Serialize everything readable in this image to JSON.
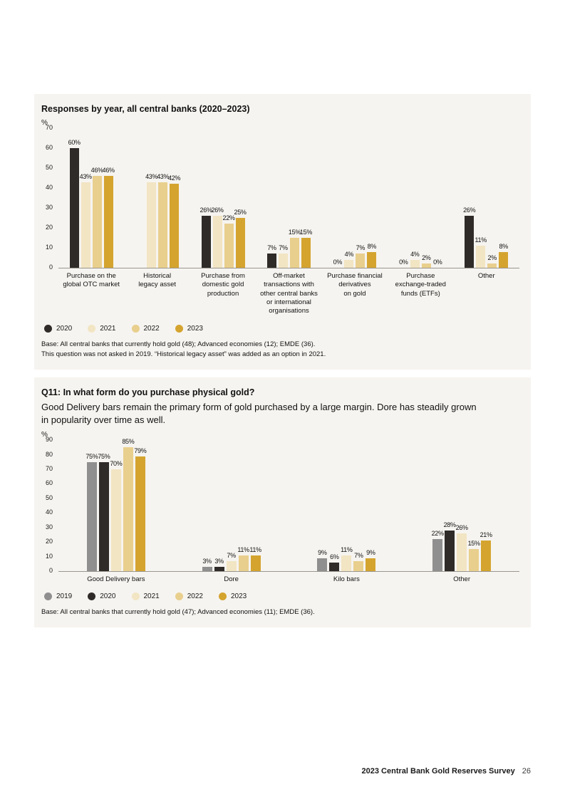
{
  "chart_data": [
    {
      "type": "bar",
      "title": "Responses by year, all central banks (2020–2023)",
      "ylabel": "%",
      "ylim": [
        0,
        70
      ],
      "yticks": [
        0,
        10,
        20,
        30,
        40,
        50,
        60,
        70
      ],
      "grid": false,
      "legend_position": "bottom",
      "categories": [
        "Purchase on the\nglobal OTC market",
        "Historical\nlegacy asset",
        "Purchase from\ndomestic gold\nproduction",
        "Off-market\ntransactions with\nother central banks\nor international\norganisations",
        "Purchase financial\nderivatives\non gold",
        "Purchase\nexchange-traded\nfunds (ETFs)",
        "Other"
      ],
      "series": [
        {
          "name": "2020",
          "color": "#2e2b28",
          "values": [
            60,
            null,
            26,
            7,
            0,
            0,
            26
          ]
        },
        {
          "name": "2021",
          "color": "#f2e5c3",
          "values": [
            43,
            43,
            26,
            7,
            4,
            4,
            11
          ]
        },
        {
          "name": "2022",
          "color": "#e9cf8d",
          "values": [
            46,
            43,
            22,
            15,
            7,
            2,
            2
          ]
        },
        {
          "name": "2023",
          "color": "#d4a42f",
          "values": [
            46,
            42,
            25,
            15,
            8,
            0,
            8
          ]
        }
      ],
      "notes": [
        "Base: All central banks that currently hold gold (48); Advanced economies (12); EMDE (36).",
        "This question was not asked in 2019. “Historical legacy asset” was added as an option in 2021."
      ]
    },
    {
      "type": "bar",
      "title": "Q11: In what form do you purchase physical gold?",
      "subtitle": "Good Delivery bars remain the primary form of gold purchased by a large margin. Dore has steadily grown\nin popularity over time as well.",
      "ylabel": "%",
      "ylim": [
        0,
        90
      ],
      "yticks": [
        0,
        10,
        20,
        30,
        40,
        50,
        60,
        70,
        80,
        90
      ],
      "grid": false,
      "legend_position": "bottom",
      "categories": [
        "Good Delivery bars",
        "Dore",
        "Kilo bars",
        "Other"
      ],
      "series": [
        {
          "name": "2019",
          "color": "#8f8f8f",
          "values": [
            75,
            3,
            9,
            22
          ]
        },
        {
          "name": "2020",
          "color": "#2e2b28",
          "values": [
            75,
            3,
            6,
            28
          ]
        },
        {
          "name": "2021",
          "color": "#f2e5c3",
          "values": [
            70,
            7,
            11,
            26
          ]
        },
        {
          "name": "2022",
          "color": "#e9cf8d",
          "values": [
            85,
            11,
            7,
            15
          ]
        },
        {
          "name": "2023",
          "color": "#d4a42f",
          "values": [
            79,
            11,
            9,
            21
          ]
        }
      ],
      "notes": [
        "Base: All central banks that currently hold gold (47); Advanced economies (11); EMDE (36)."
      ]
    }
  ],
  "footer": {
    "title": "2023 Central Bank Gold Reserves Survey",
    "page": "26"
  }
}
